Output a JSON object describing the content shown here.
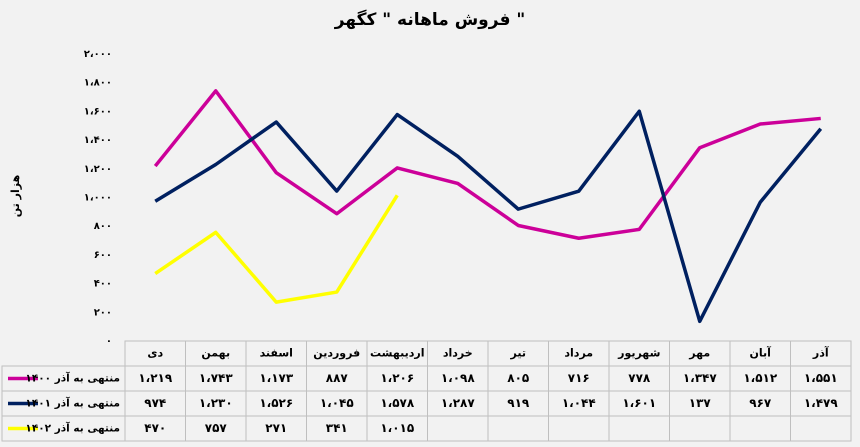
{
  "chart_data": {
    "type": "line",
    "title": "فروش ماهانه \" کگهر \"",
    "y_label": "هزار تن",
    "categories": [
      "دی",
      "بهمن",
      "اسفند",
      "فروردین",
      "اردیبهشت",
      "خرداد",
      "تیر",
      "مرداد",
      "شهریور",
      "مهر",
      "آبان",
      "آذر"
    ],
    "series": [
      {
        "name": "منتهی به آذر ۱۴۰۰",
        "color": "#cc0099",
        "values": [
          1219,
          1743,
          1173,
          887,
          1206,
          1098,
          805,
          716,
          778,
          1347,
          1512,
          1551
        ],
        "value_labels": [
          "۱،۲۱۹",
          "۱،۷۴۳",
          "۱،۱۷۳",
          "۸۸۷",
          "۱،۲۰۶",
          "۱،۰۹۸",
          "۸۰۵",
          "۷۱۶",
          "۷۷۸",
          "۱،۳۴۷",
          "۱،۵۱۲",
          "۱،۵۵۱"
        ]
      },
      {
        "name": "منتهی به آذر ۱۴۰۱",
        "color": "#002060",
        "values": [
          974,
          1230,
          1526,
          1045,
          1578,
          1287,
          919,
          1044,
          1601,
          137,
          967,
          1479
        ],
        "value_labels": [
          "۹۷۴",
          "۱،۲۳۰",
          "۱،۵۲۶",
          "۱،۰۴۵",
          "۱،۵۷۸",
          "۱،۲۸۷",
          "۹۱۹",
          "۱،۰۴۴",
          "۱،۶۰۱",
          "۱۳۷",
          "۹۶۷",
          "۱،۴۷۹"
        ]
      },
      {
        "name": "منتهی به آذر ۱۴۰۲",
        "color": "#ffff00",
        "values": [
          470,
          757,
          271,
          341,
          1015,
          null,
          null,
          null,
          null,
          null,
          null,
          null
        ],
        "value_labels": [
          "۴۷۰",
          "۷۵۷",
          "۲۷۱",
          "۳۴۱",
          "۱،۰۱۵",
          null,
          null,
          null,
          null,
          null,
          null,
          null
        ]
      }
    ],
    "ylim": [
      0,
      2000
    ],
    "yticks": [
      {
        "value": 0,
        "label": "۰"
      },
      {
        "value": 200,
        "label": "۲۰۰"
      },
      {
        "value": 400,
        "label": "۴۰۰"
      },
      {
        "value": 600,
        "label": "۶۰۰"
      },
      {
        "value": 800,
        "label": "۸۰۰"
      },
      {
        "value": 1000,
        "label": "۱،۰۰۰"
      },
      {
        "value": 1200,
        "label": "۱،۲۰۰"
      },
      {
        "value": 1400,
        "label": "۱،۴۰۰"
      },
      {
        "value": 1600,
        "label": "۱،۶۰۰"
      },
      {
        "value": 1800,
        "label": "۱،۸۰۰"
      },
      {
        "value": 2000,
        "label": "۲،۰۰۰"
      }
    ],
    "grid": false
  }
}
